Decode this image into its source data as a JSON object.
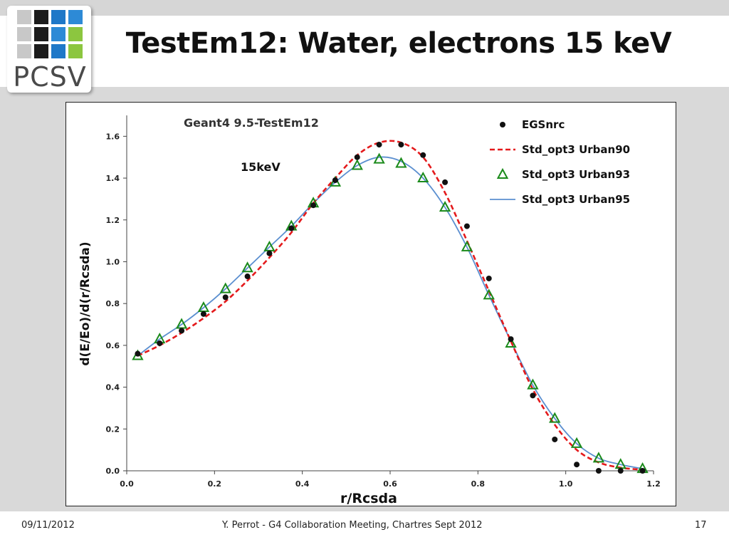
{
  "slide": {
    "title": "TestEm12: Water, electrons 15 keV",
    "logo_text": "PCSV",
    "footer_left": "09/11/2012",
    "footer_center": "Y. Perrot - G4 Collaboration Meeting, Chartres Sept 2012",
    "footer_right": "17"
  },
  "colors": {
    "egsnrc": "#111111",
    "urban90": "#e41a1c",
    "urban93": "#1a8a1a",
    "urban95": "#5b8fd0"
  },
  "chart_data": {
    "type": "line",
    "title": "Geant4 9.5-TestEm12",
    "annotation": "15keV",
    "xlabel": "r/Rcsda",
    "ylabel": "d(E/Eo)/d(r/Rcsda)",
    "xlim": [
      0.0,
      1.2
    ],
    "ylim": [
      0.0,
      1.7
    ],
    "x_ticks": [
      "0.0",
      "0.2",
      "0.4",
      "0.6",
      "0.8",
      "1.0",
      "1.2"
    ],
    "y_ticks": [
      "0.0",
      "0.2",
      "0.4",
      "0.6",
      "0.8",
      "1.0",
      "1.2",
      "1.4",
      "1.6"
    ],
    "x_tick_values": [
      0.0,
      0.2,
      0.4,
      0.6,
      0.8,
      1.0,
      1.2
    ],
    "y_tick_values": [
      0.0,
      0.2,
      0.4,
      0.6,
      0.8,
      1.0,
      1.2,
      1.4,
      1.6
    ],
    "legend_position": "top-right",
    "x": [
      0.025,
      0.075,
      0.125,
      0.175,
      0.225,
      0.275,
      0.325,
      0.375,
      0.425,
      0.475,
      0.525,
      0.575,
      0.625,
      0.675,
      0.725,
      0.775,
      0.825,
      0.875,
      0.925,
      0.975,
      1.025,
      1.075,
      1.125,
      1.175
    ],
    "series": [
      {
        "name": "EGSnrc",
        "style": "markers-dot",
        "values": [
          0.56,
          0.61,
          0.67,
          0.75,
          0.83,
          0.93,
          1.04,
          1.16,
          1.27,
          1.39,
          1.5,
          1.56,
          1.56,
          1.51,
          1.38,
          1.17,
          0.92,
          0.63,
          0.36,
          0.15,
          0.03,
          0.0,
          0.0,
          0.0
        ]
      },
      {
        "name": "Std_opt3 Urban90",
        "style": "dashed-line",
        "values": [
          0.55,
          0.6,
          0.66,
          0.73,
          0.81,
          0.91,
          1.02,
          1.14,
          1.28,
          1.4,
          1.51,
          1.57,
          1.57,
          1.5,
          1.33,
          1.1,
          0.86,
          0.62,
          0.39,
          0.22,
          0.1,
          0.04,
          0.015,
          0.005
        ]
      },
      {
        "name": "Std_opt3 Urban93",
        "style": "markers-triangle",
        "values": [
          0.55,
          0.63,
          0.7,
          0.78,
          0.87,
          0.97,
          1.07,
          1.17,
          1.28,
          1.38,
          1.46,
          1.49,
          1.47,
          1.4,
          1.26,
          1.07,
          0.84,
          0.61,
          0.41,
          0.25,
          0.13,
          0.06,
          0.03,
          0.01
        ]
      },
      {
        "name": "Std_opt3 Urban95",
        "style": "solid-line",
        "values": [
          0.55,
          0.63,
          0.7,
          0.78,
          0.87,
          0.97,
          1.07,
          1.17,
          1.28,
          1.38,
          1.46,
          1.5,
          1.48,
          1.4,
          1.26,
          1.07,
          0.84,
          0.62,
          0.41,
          0.25,
          0.13,
          0.06,
          0.03,
          0.01
        ]
      }
    ]
  }
}
